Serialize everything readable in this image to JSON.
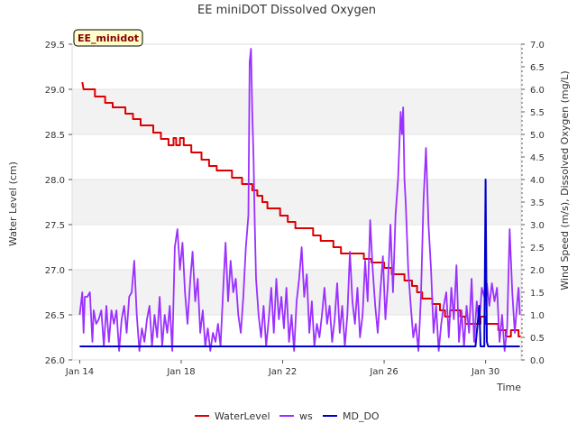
{
  "chart_data": {
    "type": "line",
    "title": "EE miniDOT Dissolved Oxygen",
    "xlabel": "Time",
    "ylabel_left": "Water Level (cm)",
    "ylabel_right": "Wind Speed (m/s), Dissolved Oxygen (mg/L)",
    "badge": "EE_minidot",
    "x_range_days_from_jan14": [
      -0.3,
      17.4
    ],
    "x_ticks": [
      {
        "label": "Jan 14",
        "day": 0
      },
      {
        "label": "Jan 18",
        "day": 4
      },
      {
        "label": "Jan 22",
        "day": 8
      },
      {
        "label": "Jan 26",
        "day": 12
      },
      {
        "label": "Jan 30",
        "day": 16
      }
    ],
    "ylim_left": [
      26.0,
      29.5
    ],
    "y_ticks_left": [
      "26.0",
      "26.5",
      "27.0",
      "27.5",
      "28.0",
      "28.5",
      "29.0",
      "29.5"
    ],
    "ylim_right": [
      0.0,
      7.0
    ],
    "y_ticks_right": [
      "0.0",
      "0.5",
      "1.0",
      "1.5",
      "2.0",
      "2.5",
      "3.0",
      "3.5",
      "4.0",
      "4.5",
      "5.0",
      "5.5",
      "6.0",
      "6.5",
      "7.0"
    ],
    "grid_bands": true,
    "legend_position": "bottom",
    "series": [
      {
        "name": "WaterLevel",
        "color": "#dd0000",
        "axis": "left",
        "style": "step",
        "points": [
          [
            0.1,
            29.08
          ],
          [
            0.15,
            29.0
          ],
          [
            0.6,
            29.0
          ],
          [
            0.6,
            28.92
          ],
          [
            1.0,
            28.92
          ],
          [
            1.0,
            28.85
          ],
          [
            1.3,
            28.85
          ],
          [
            1.3,
            28.8
          ],
          [
            1.8,
            28.8
          ],
          [
            1.8,
            28.73
          ],
          [
            2.1,
            28.73
          ],
          [
            2.1,
            28.67
          ],
          [
            2.4,
            28.67
          ],
          [
            2.4,
            28.6
          ],
          [
            2.9,
            28.6
          ],
          [
            2.9,
            28.52
          ],
          [
            3.2,
            28.52
          ],
          [
            3.2,
            28.45
          ],
          [
            3.5,
            28.45
          ],
          [
            3.5,
            28.38
          ],
          [
            3.7,
            28.38
          ],
          [
            3.7,
            28.46
          ],
          [
            3.8,
            28.46
          ],
          [
            3.8,
            28.38
          ],
          [
            3.95,
            28.38
          ],
          [
            3.95,
            28.46
          ],
          [
            4.1,
            28.46
          ],
          [
            4.1,
            28.38
          ],
          [
            4.4,
            28.38
          ],
          [
            4.4,
            28.3
          ],
          [
            4.8,
            28.3
          ],
          [
            4.8,
            28.22
          ],
          [
            5.1,
            28.22
          ],
          [
            5.1,
            28.15
          ],
          [
            5.4,
            28.15
          ],
          [
            5.4,
            28.1
          ],
          [
            6.0,
            28.1
          ],
          [
            6.0,
            28.02
          ],
          [
            6.4,
            28.02
          ],
          [
            6.4,
            27.95
          ],
          [
            6.8,
            27.95
          ],
          [
            6.8,
            27.88
          ],
          [
            7.0,
            27.88
          ],
          [
            7.0,
            27.82
          ],
          [
            7.2,
            27.82
          ],
          [
            7.2,
            27.75
          ],
          [
            7.4,
            27.75
          ],
          [
            7.4,
            27.68
          ],
          [
            7.9,
            27.68
          ],
          [
            7.9,
            27.6
          ],
          [
            8.2,
            27.6
          ],
          [
            8.2,
            27.53
          ],
          [
            8.5,
            27.53
          ],
          [
            8.5,
            27.46
          ],
          [
            9.2,
            27.46
          ],
          [
            9.2,
            27.38
          ],
          [
            9.5,
            27.38
          ],
          [
            9.5,
            27.32
          ],
          [
            10.0,
            27.32
          ],
          [
            10.0,
            27.25
          ],
          [
            10.3,
            27.25
          ],
          [
            10.3,
            27.18
          ],
          [
            11.2,
            27.18
          ],
          [
            11.2,
            27.12
          ],
          [
            11.5,
            27.12
          ],
          [
            11.5,
            27.08
          ],
          [
            12.0,
            27.08
          ],
          [
            12.0,
            27.02
          ],
          [
            12.3,
            27.02
          ],
          [
            12.3,
            26.95
          ],
          [
            12.8,
            26.95
          ],
          [
            12.8,
            26.88
          ],
          [
            13.1,
            26.88
          ],
          [
            13.1,
            26.82
          ],
          [
            13.3,
            26.82
          ],
          [
            13.3,
            26.75
          ],
          [
            13.5,
            26.75
          ],
          [
            13.5,
            26.68
          ],
          [
            13.9,
            26.68
          ],
          [
            13.9,
            26.62
          ],
          [
            14.2,
            26.62
          ],
          [
            14.2,
            26.55
          ],
          [
            14.4,
            26.55
          ],
          [
            14.4,
            26.48
          ],
          [
            14.6,
            26.48
          ],
          [
            14.6,
            26.55
          ],
          [
            15.0,
            26.55
          ],
          [
            15.0,
            26.48
          ],
          [
            15.2,
            26.48
          ],
          [
            15.2,
            26.4
          ],
          [
            15.8,
            26.4
          ],
          [
            15.8,
            26.48
          ],
          [
            16.0,
            26.48
          ],
          [
            16.0,
            26.4
          ],
          [
            16.5,
            26.4
          ],
          [
            16.5,
            26.33
          ],
          [
            16.8,
            26.33
          ],
          [
            16.8,
            26.26
          ],
          [
            17.0,
            26.26
          ],
          [
            17.0,
            26.33
          ],
          [
            17.3,
            26.33
          ],
          [
            17.3,
            26.26
          ],
          [
            17.4,
            26.26
          ]
        ]
      },
      {
        "name": "ws",
        "color": "#9b30ff",
        "axis": "right",
        "style": "line",
        "points": [
          [
            0.0,
            1.0
          ],
          [
            0.1,
            1.5
          ],
          [
            0.15,
            0.6
          ],
          [
            0.2,
            1.4
          ],
          [
            0.3,
            1.4
          ],
          [
            0.4,
            1.5
          ],
          [
            0.5,
            0.4
          ],
          [
            0.55,
            1.1
          ],
          [
            0.65,
            0.8
          ],
          [
            0.75,
            0.9
          ],
          [
            0.85,
            1.1
          ],
          [
            0.95,
            0.3
          ],
          [
            1.05,
            1.2
          ],
          [
            1.15,
            0.4
          ],
          [
            1.25,
            1.1
          ],
          [
            1.35,
            0.8
          ],
          [
            1.45,
            1.1
          ],
          [
            1.55,
            0.2
          ],
          [
            1.65,
            0.9
          ],
          [
            1.75,
            1.2
          ],
          [
            1.85,
            0.6
          ],
          [
            1.95,
            1.4
          ],
          [
            2.05,
            1.5
          ],
          [
            2.15,
            2.2
          ],
          [
            2.25,
            1.0
          ],
          [
            2.35,
            0.2
          ],
          [
            2.45,
            0.7
          ],
          [
            2.55,
            0.4
          ],
          [
            2.65,
            0.9
          ],
          [
            2.75,
            1.2
          ],
          [
            2.85,
            0.3
          ],
          [
            2.95,
            1.0
          ],
          [
            3.05,
            0.5
          ],
          [
            3.15,
            1.4
          ],
          [
            3.25,
            0.3
          ],
          [
            3.35,
            1.0
          ],
          [
            3.45,
            0.6
          ],
          [
            3.55,
            1.2
          ],
          [
            3.65,
            0.2
          ],
          [
            3.75,
            2.5
          ],
          [
            3.85,
            2.9
          ],
          [
            3.95,
            2.0
          ],
          [
            4.05,
            2.6
          ],
          [
            4.15,
            1.5
          ],
          [
            4.25,
            0.8
          ],
          [
            4.35,
            1.7
          ],
          [
            4.45,
            2.4
          ],
          [
            4.55,
            1.3
          ],
          [
            4.65,
            1.8
          ],
          [
            4.75,
            0.6
          ],
          [
            4.85,
            1.1
          ],
          [
            4.95,
            0.3
          ],
          [
            5.05,
            0.7
          ],
          [
            5.15,
            0.2
          ],
          [
            5.25,
            0.6
          ],
          [
            5.35,
            0.4
          ],
          [
            5.45,
            0.8
          ],
          [
            5.55,
            0.3
          ],
          [
            5.65,
            1.5
          ],
          [
            5.75,
            2.6
          ],
          [
            5.85,
            1.3
          ],
          [
            5.95,
            2.2
          ],
          [
            6.05,
            1.5
          ],
          [
            6.15,
            1.8
          ],
          [
            6.25,
            1.0
          ],
          [
            6.35,
            0.6
          ],
          [
            6.45,
            1.4
          ],
          [
            6.55,
            2.5
          ],
          [
            6.65,
            3.2
          ],
          [
            6.7,
            6.6
          ],
          [
            6.75,
            6.9
          ],
          [
            6.8,
            5.5
          ],
          [
            6.85,
            4.5
          ],
          [
            6.9,
            3.0
          ],
          [
            6.95,
            1.8
          ],
          [
            7.05,
            1.0
          ],
          [
            7.15,
            0.5
          ],
          [
            7.25,
            1.2
          ],
          [
            7.35,
            0.3
          ],
          [
            7.45,
            0.9
          ],
          [
            7.55,
            1.6
          ],
          [
            7.65,
            0.6
          ],
          [
            7.75,
            1.8
          ],
          [
            7.85,
            0.9
          ],
          [
            7.95,
            1.4
          ],
          [
            8.05,
            0.7
          ],
          [
            8.15,
            1.6
          ],
          [
            8.25,
            0.4
          ],
          [
            8.35,
            1.0
          ],
          [
            8.45,
            0.2
          ],
          [
            8.55,
            1.3
          ],
          [
            8.65,
            1.8
          ],
          [
            8.75,
            2.5
          ],
          [
            8.85,
            1.4
          ],
          [
            8.95,
            1.9
          ],
          [
            9.05,
            0.6
          ],
          [
            9.15,
            1.3
          ],
          [
            9.25,
            0.3
          ],
          [
            9.35,
            0.8
          ],
          [
            9.45,
            0.5
          ],
          [
            9.55,
            1.0
          ],
          [
            9.65,
            1.6
          ],
          [
            9.75,
            0.8
          ],
          [
            9.85,
            1.2
          ],
          [
            9.95,
            0.4
          ],
          [
            10.05,
            0.9
          ],
          [
            10.15,
            1.7
          ],
          [
            10.25,
            0.6
          ],
          [
            10.35,
            1.2
          ],
          [
            10.45,
            0.3
          ],
          [
            10.55,
            1.0
          ],
          [
            10.65,
            2.4
          ],
          [
            10.75,
            1.3
          ],
          [
            10.85,
            0.8
          ],
          [
            10.95,
            1.6
          ],
          [
            11.05,
            0.5
          ],
          [
            11.15,
            1.0
          ],
          [
            11.25,
            2.2
          ],
          [
            11.35,
            1.3
          ],
          [
            11.45,
            3.1
          ],
          [
            11.55,
            2.0
          ],
          [
            11.65,
            1.2
          ],
          [
            11.75,
            0.6
          ],
          [
            11.85,
            1.5
          ],
          [
            11.95,
            2.3
          ],
          [
            12.05,
            0.9
          ],
          [
            12.15,
            1.7
          ],
          [
            12.25,
            3.0
          ],
          [
            12.35,
            1.5
          ],
          [
            12.45,
            3.2
          ],
          [
            12.55,
            4.0
          ],
          [
            12.65,
            5.5
          ],
          [
            12.7,
            5.0
          ],
          [
            12.75,
            5.6
          ],
          [
            12.8,
            4.0
          ],
          [
            12.85,
            3.5
          ],
          [
            12.95,
            2.0
          ],
          [
            13.05,
            1.2
          ],
          [
            13.15,
            0.5
          ],
          [
            13.25,
            0.8
          ],
          [
            13.35,
            0.2
          ],
          [
            13.45,
            1.4
          ],
          [
            13.55,
            3.5
          ],
          [
            13.65,
            4.7
          ],
          [
            13.75,
            3.0
          ],
          [
            13.85,
            2.0
          ],
          [
            13.95,
            0.6
          ],
          [
            14.05,
            1.2
          ],
          [
            14.15,
            0.2
          ],
          [
            14.25,
            0.8
          ],
          [
            14.35,
            1.2
          ],
          [
            14.45,
            1.5
          ],
          [
            14.55,
            0.5
          ],
          [
            14.65,
            1.6
          ],
          [
            14.75,
            0.9
          ],
          [
            14.85,
            2.1
          ],
          [
            14.95,
            0.4
          ],
          [
            15.05,
            1.1
          ],
          [
            15.15,
            0.3
          ],
          [
            15.25,
            1.2
          ],
          [
            15.35,
            0.6
          ],
          [
            15.45,
            1.8
          ],
          [
            15.55,
            0.4
          ],
          [
            15.65,
            1.3
          ],
          [
            15.75,
            0.8
          ],
          [
            15.85,
            1.6
          ],
          [
            15.95,
            1.4
          ],
          [
            16.05,
            1.7
          ],
          [
            16.15,
            1.2
          ],
          [
            16.25,
            1.7
          ],
          [
            16.35,
            1.3
          ],
          [
            16.45,
            1.6
          ],
          [
            16.55,
            0.4
          ],
          [
            16.65,
            1.0
          ],
          [
            16.75,
            0.2
          ],
          [
            16.85,
            0.7
          ],
          [
            16.95,
            2.9
          ],
          [
            17.05,
            1.5
          ],
          [
            17.15,
            0.6
          ],
          [
            17.25,
            1.3
          ],
          [
            17.3,
            1.6
          ],
          [
            17.35,
            1.0
          ]
        ]
      },
      {
        "name": "MD_DO",
        "color": "#0000cc",
        "axis": "right",
        "style": "line",
        "points": [
          [
            0.0,
            0.3
          ],
          [
            15.6,
            0.3
          ],
          [
            15.7,
            0.9
          ],
          [
            15.75,
            1.2
          ],
          [
            15.8,
            0.3
          ],
          [
            15.95,
            0.3
          ],
          [
            16.0,
            4.0
          ],
          [
            16.05,
            0.4
          ],
          [
            16.1,
            0.3
          ],
          [
            17.35,
            0.3
          ]
        ]
      }
    ]
  }
}
